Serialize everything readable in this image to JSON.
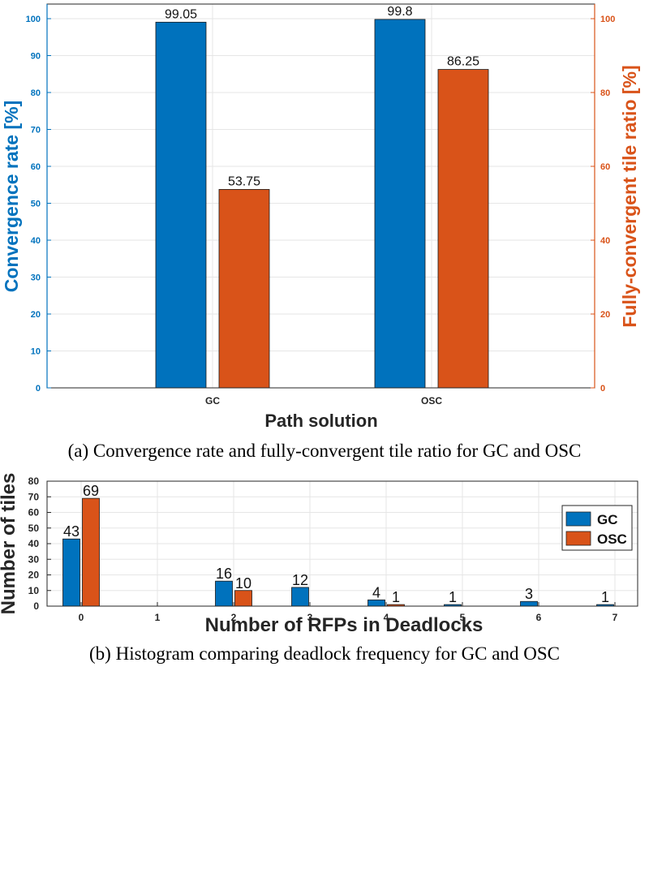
{
  "chart_data": [
    {
      "type": "bar",
      "categories": [
        "GC",
        "OSC"
      ],
      "series": [
        {
          "name": "Convergence rate",
          "values": [
            99.05,
            99.8
          ],
          "axis": "left",
          "color": "#0072BD"
        },
        {
          "name": "Fully-convergent tile ratio",
          "values": [
            53.75,
            86.25
          ],
          "axis": "right",
          "color": "#D95319"
        }
      ],
      "data_labels": [
        [
          "99.05",
          "99.8"
        ],
        [
          "53.75",
          "86.25"
        ]
      ],
      "xlabel": "Path solution",
      "ylabel_left": "Convergence rate [%]",
      "ylabel_right": "Fully-convergent tile ratio [%]",
      "ylim_left": [
        0,
        105
      ],
      "ylim_right": [
        0,
        105
      ],
      "yticks_left": [
        "0",
        "10",
        "20",
        "30",
        "40",
        "50",
        "60",
        "70",
        "80",
        "90",
        "100"
      ],
      "yticks_right": [
        "0",
        "20",
        "40",
        "60",
        "80",
        "100"
      ],
      "grid": true,
      "caption": "(a) Convergence rate and fully-convergent tile ratio for GC and OSC"
    },
    {
      "type": "bar",
      "categories": [
        "0",
        "1",
        "2",
        "3",
        "4",
        "5",
        "6",
        "7"
      ],
      "series": [
        {
          "name": "GC",
          "values": [
            43,
            0,
            16,
            12,
            4,
            1,
            3,
            1
          ],
          "color": "#0072BD"
        },
        {
          "name": "OSC",
          "values": [
            69,
            0,
            10,
            0,
            1,
            0,
            0,
            0
          ],
          "color": "#D95319"
        }
      ],
      "data_labels": [
        [
          "43",
          "",
          "16",
          "12",
          "4",
          "1",
          "3",
          "1"
        ],
        [
          "69",
          "",
          "10",
          "",
          "1",
          "",
          "",
          ""
        ]
      ],
      "xlabel": "Number of RFPs in Deadlocks",
      "ylabel": "Number of tiles",
      "ylim": [
        0,
        80
      ],
      "yticks": [
        "0",
        "10",
        "20",
        "30",
        "40",
        "50",
        "60",
        "70",
        "80"
      ],
      "legend": {
        "position": "top-right",
        "entries": [
          "GC",
          "OSC"
        ]
      },
      "grid": true,
      "caption": "(b) Histogram comparing deadlock frequency for GC and OSC"
    }
  ]
}
